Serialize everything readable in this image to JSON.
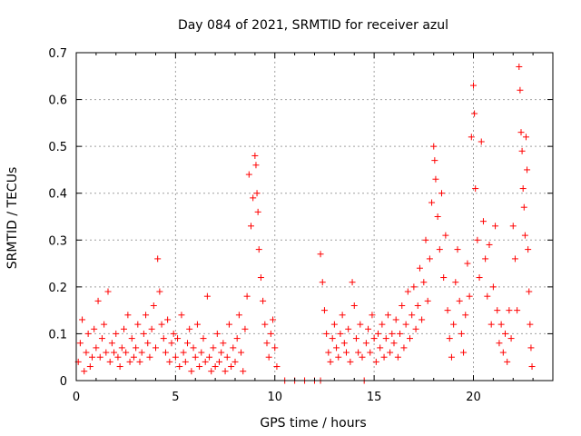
{
  "chart_data": {
    "type": "scatter",
    "title": "Day 084 of 2021, SRMTID for receiver azul",
    "xlabel": "GPS time / hours",
    "ylabel": "SRMTID / TECUs",
    "xlim": [
      0,
      24
    ],
    "ylim": [
      0,
      0.7
    ],
    "x_ticks": [
      0,
      5,
      10,
      15,
      20
    ],
    "y_ticks": [
      0,
      0.1,
      0.2,
      0.3,
      0.4,
      0.5,
      0.6,
      0.7
    ],
    "x_tick_labels": [
      "0",
      "5",
      "10",
      "15",
      "20"
    ],
    "y_tick_labels": [
      "0",
      "0.1",
      "0.2",
      "0.3",
      "0.4",
      "0.5",
      "0.6",
      "0.7"
    ],
    "grid": true,
    "marker": "+",
    "marker_color": "#ff0000",
    "series": [
      {
        "name": "SRMTID",
        "points": [
          [
            0.1,
            0.04
          ],
          [
            0.2,
            0.08
          ],
          [
            0.3,
            0.13
          ],
          [
            0.4,
            0.02
          ],
          [
            0.5,
            0.06
          ],
          [
            0.6,
            0.1
          ],
          [
            0.7,
            0.03
          ],
          [
            0.8,
            0.05
          ],
          [
            0.9,
            0.11
          ],
          [
            1.0,
            0.07
          ],
          [
            1.1,
            0.17
          ],
          [
            1.2,
            0.05
          ],
          [
            1.3,
            0.09
          ],
          [
            1.4,
            0.12
          ],
          [
            1.5,
            0.06
          ],
          [
            1.6,
            0.19
          ],
          [
            1.7,
            0.04
          ],
          [
            1.8,
            0.08
          ],
          [
            1.9,
            0.06
          ],
          [
            2.0,
            0.1
          ],
          [
            2.1,
            0.05
          ],
          [
            2.2,
            0.03
          ],
          [
            2.3,
            0.07
          ],
          [
            2.4,
            0.11
          ],
          [
            2.5,
            0.06
          ],
          [
            2.6,
            0.14
          ],
          [
            2.7,
            0.04
          ],
          [
            2.8,
            0.09
          ],
          [
            2.9,
            0.05
          ],
          [
            3.0,
            0.07
          ],
          [
            3.1,
            0.12
          ],
          [
            3.2,
            0.04
          ],
          [
            3.3,
            0.06
          ],
          [
            3.4,
            0.1
          ],
          [
            3.5,
            0.14
          ],
          [
            3.6,
            0.08
          ],
          [
            3.7,
            0.05
          ],
          [
            3.8,
            0.11
          ],
          [
            3.9,
            0.16
          ],
          [
            4.0,
            0.07
          ],
          [
            4.1,
            0.26
          ],
          [
            4.2,
            0.19
          ],
          [
            4.3,
            0.12
          ],
          [
            4.4,
            0.09
          ],
          [
            4.5,
            0.06
          ],
          [
            4.6,
            0.13
          ],
          [
            4.7,
            0.04
          ],
          [
            4.8,
            0.08
          ],
          [
            4.9,
            0.1
          ],
          [
            5.0,
            0.05
          ],
          [
            5.1,
            0.09
          ],
          [
            5.2,
            0.03
          ],
          [
            5.3,
            0.14
          ],
          [
            5.4,
            0.06
          ],
          [
            5.5,
            0.04
          ],
          [
            5.6,
            0.08
          ],
          [
            5.7,
            0.11
          ],
          [
            5.8,
            0.02
          ],
          [
            5.9,
            0.07
          ],
          [
            6.0,
            0.05
          ],
          [
            6.1,
            0.12
          ],
          [
            6.2,
            0.03
          ],
          [
            6.3,
            0.06
          ],
          [
            6.4,
            0.09
          ],
          [
            6.5,
            0.04
          ],
          [
            6.6,
            0.18
          ],
          [
            6.7,
            0.05
          ],
          [
            6.8,
            0.02
          ],
          [
            6.9,
            0.07
          ],
          [
            7.0,
            0.03
          ],
          [
            7.1,
            0.1
          ],
          [
            7.2,
            0.04
          ],
          [
            7.3,
            0.06
          ],
          [
            7.4,
            0.08
          ],
          [
            7.5,
            0.02
          ],
          [
            7.6,
            0.05
          ],
          [
            7.7,
            0.12
          ],
          [
            7.8,
            0.03
          ],
          [
            7.9,
            0.07
          ],
          [
            8.0,
            0.04
          ],
          [
            8.1,
            0.09
          ],
          [
            8.2,
            0.14
          ],
          [
            8.3,
            0.06
          ],
          [
            8.4,
            0.02
          ],
          [
            8.5,
            0.11
          ],
          [
            8.6,
            0.18
          ],
          [
            8.7,
            0.44
          ],
          [
            8.8,
            0.33
          ],
          [
            8.9,
            0.39
          ],
          [
            9.0,
            0.48
          ],
          [
            9.05,
            0.46
          ],
          [
            9.1,
            0.4
          ],
          [
            9.15,
            0.36
          ],
          [
            9.2,
            0.28
          ],
          [
            9.3,
            0.22
          ],
          [
            9.4,
            0.17
          ],
          [
            9.5,
            0.12
          ],
          [
            9.6,
            0.08
          ],
          [
            9.7,
            0.05
          ],
          [
            9.8,
            0.1
          ],
          [
            9.9,
            0.13
          ],
          [
            10.0,
            0.07
          ],
          [
            10.1,
            0.03
          ],
          [
            10.5,
            0.0
          ],
          [
            11.0,
            0.0
          ],
          [
            11.5,
            0.0
          ],
          [
            12.0,
            0.0
          ],
          [
            12.3,
            0.0
          ],
          [
            12.3,
            0.27
          ],
          [
            12.4,
            0.21
          ],
          [
            12.5,
            0.15
          ],
          [
            12.6,
            0.1
          ],
          [
            12.7,
            0.06
          ],
          [
            12.8,
            0.04
          ],
          [
            12.9,
            0.09
          ],
          [
            13.0,
            0.12
          ],
          [
            13.1,
            0.07
          ],
          [
            13.2,
            0.05
          ],
          [
            13.3,
            0.1
          ],
          [
            13.4,
            0.14
          ],
          [
            13.5,
            0.08
          ],
          [
            13.6,
            0.06
          ],
          [
            13.7,
            0.11
          ],
          [
            13.8,
            0.04
          ],
          [
            13.9,
            0.21
          ],
          [
            14.0,
            0.16
          ],
          [
            14.1,
            0.09
          ],
          [
            14.2,
            0.06
          ],
          [
            14.3,
            0.12
          ],
          [
            14.4,
            0.05
          ],
          [
            14.5,
            0.0
          ],
          [
            14.6,
            0.08
          ],
          [
            14.7,
            0.11
          ],
          [
            14.8,
            0.06
          ],
          [
            14.9,
            0.14
          ],
          [
            15.0,
            0.09
          ],
          [
            15.1,
            0.04
          ],
          [
            15.2,
            0.1
          ],
          [
            15.3,
            0.07
          ],
          [
            15.4,
            0.12
          ],
          [
            15.5,
            0.05
          ],
          [
            15.6,
            0.09
          ],
          [
            15.7,
            0.14
          ],
          [
            15.8,
            0.06
          ],
          [
            15.9,
            0.1
          ],
          [
            16.0,
            0.08
          ],
          [
            16.1,
            0.13
          ],
          [
            16.2,
            0.05
          ],
          [
            16.3,
            0.1
          ],
          [
            16.4,
            0.16
          ],
          [
            16.5,
            0.07
          ],
          [
            16.6,
            0.12
          ],
          [
            16.7,
            0.19
          ],
          [
            16.8,
            0.09
          ],
          [
            16.9,
            0.14
          ],
          [
            17.0,
            0.2
          ],
          [
            17.1,
            0.11
          ],
          [
            17.2,
            0.16
          ],
          [
            17.3,
            0.24
          ],
          [
            17.4,
            0.13
          ],
          [
            17.5,
            0.21
          ],
          [
            17.6,
            0.3
          ],
          [
            17.7,
            0.17
          ],
          [
            17.8,
            0.26
          ],
          [
            17.9,
            0.38
          ],
          [
            18.0,
            0.5
          ],
          [
            18.05,
            0.47
          ],
          [
            18.1,
            0.43
          ],
          [
            18.2,
            0.35
          ],
          [
            18.3,
            0.28
          ],
          [
            18.4,
            0.4
          ],
          [
            18.5,
            0.22
          ],
          [
            18.6,
            0.31
          ],
          [
            18.7,
            0.15
          ],
          [
            18.8,
            0.09
          ],
          [
            18.9,
            0.05
          ],
          [
            19.0,
            0.12
          ],
          [
            19.1,
            0.21
          ],
          [
            19.2,
            0.28
          ],
          [
            19.3,
            0.17
          ],
          [
            19.4,
            0.1
          ],
          [
            19.5,
            0.06
          ],
          [
            19.6,
            0.14
          ],
          [
            19.7,
            0.25
          ],
          [
            19.8,
            0.18
          ],
          [
            19.9,
            0.52
          ],
          [
            20.0,
            0.63
          ],
          [
            20.05,
            0.57
          ],
          [
            20.1,
            0.41
          ],
          [
            20.2,
            0.3
          ],
          [
            20.3,
            0.22
          ],
          [
            20.4,
            0.51
          ],
          [
            20.5,
            0.34
          ],
          [
            20.6,
            0.26
          ],
          [
            20.7,
            0.18
          ],
          [
            20.8,
            0.29
          ],
          [
            20.9,
            0.12
          ],
          [
            21.0,
            0.2
          ],
          [
            21.1,
            0.33
          ],
          [
            21.2,
            0.15
          ],
          [
            21.3,
            0.08
          ],
          [
            21.4,
            0.12
          ],
          [
            21.5,
            0.06
          ],
          [
            21.6,
            0.1
          ],
          [
            21.7,
            0.04
          ],
          [
            21.8,
            0.15
          ],
          [
            21.9,
            0.09
          ],
          [
            22.0,
            0.33
          ],
          [
            22.1,
            0.26
          ],
          [
            22.2,
            0.15
          ],
          [
            22.3,
            0.67
          ],
          [
            22.35,
            0.62
          ],
          [
            22.4,
            0.53
          ],
          [
            22.45,
            0.49
          ],
          [
            22.5,
            0.41
          ],
          [
            22.55,
            0.37
          ],
          [
            22.6,
            0.31
          ],
          [
            22.65,
            0.52
          ],
          [
            22.7,
            0.45
          ],
          [
            22.75,
            0.28
          ],
          [
            22.8,
            0.19
          ],
          [
            22.85,
            0.12
          ],
          [
            22.9,
            0.07
          ],
          [
            22.95,
            0.03
          ]
        ]
      }
    ]
  }
}
